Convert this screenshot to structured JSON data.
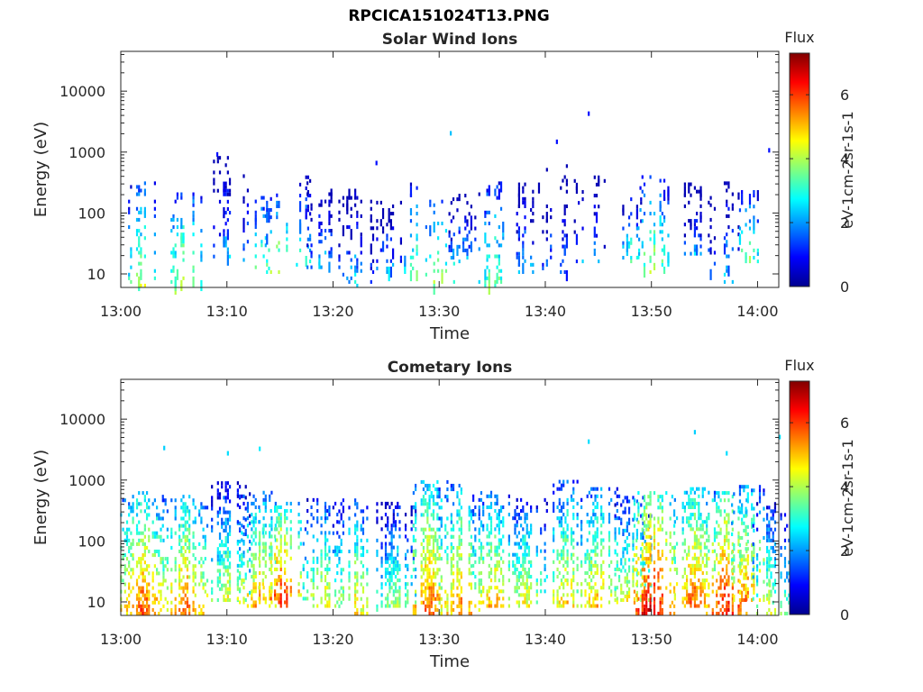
{
  "figure": {
    "title": "RPCICA151024T13.PNG"
  },
  "colormap": "jet",
  "chart_data": [
    {
      "type": "heatmap",
      "title": "Solar Wind Ions",
      "xlabel": "Time",
      "ylabel": "Energy (eV)",
      "xlim": [
        "13:00",
        "14:02"
      ],
      "x_ticks": [
        "13:00",
        "13:10",
        "13:20",
        "13:30",
        "13:40",
        "13:50",
        "14:00"
      ],
      "y_scale": "log",
      "ylim": [
        6,
        45000
      ],
      "y_ticks": [
        "10",
        "100",
        "1000",
        "10000"
      ],
      "colorbar": {
        "title": "Flux",
        "label": "eV-1cm-2sr-1s-1",
        "ticks": [
          "0",
          "2",
          "4",
          "6"
        ],
        "range": [
          0,
          7.3
        ]
      },
      "bursts": [
        {
          "t": "13:02",
          "emin": 6,
          "emax": 300,
          "flux": 4.1
        },
        {
          "t": "13:06",
          "emin": 6,
          "emax": 200,
          "flux": 4.5
        },
        {
          "t": "13:10",
          "emin": 18,
          "emax": 800,
          "flux": 2.4
        },
        {
          "t": "13:13",
          "emin": 12,
          "emax": 250,
          "flux": 3.6
        },
        {
          "t": "13:15",
          "emin": 10,
          "emax": 200,
          "flux": 4.4
        },
        {
          "t": "13:17",
          "emin": 15,
          "emax": 400,
          "flux": 3.2
        },
        {
          "t": "13:19",
          "emin": 12,
          "emax": 300,
          "flux": 2.6
        },
        {
          "t": "13:22",
          "emin": 6,
          "emax": 250,
          "flux": 2.5
        },
        {
          "t": "13:25",
          "emin": 10,
          "emax": 150,
          "flux": 2.4
        },
        {
          "t": "13:28",
          "emin": 10,
          "emax": 400,
          "flux": 3.8
        },
        {
          "t": "13:30",
          "emin": 6,
          "emax": 150,
          "flux": 4.3
        },
        {
          "t": "13:32",
          "emin": 15,
          "emax": 200,
          "flux": 2.6
        },
        {
          "t": "13:35",
          "emin": 6,
          "emax": 400,
          "flux": 3.8
        },
        {
          "t": "13:38",
          "emin": 10,
          "emax": 300,
          "flux": 2.5
        },
        {
          "t": "13:41",
          "emin": 10,
          "emax": 600,
          "flux": 2.3
        },
        {
          "t": "13:44",
          "emin": 15,
          "emax": 400,
          "flux": 2.6
        },
        {
          "t": "13:48",
          "emin": 15,
          "emax": 200,
          "flux": 3.3
        },
        {
          "t": "13:50",
          "emin": 10,
          "emax": 400,
          "flux": 4.2
        },
        {
          "t": "13:54",
          "emin": 20,
          "emax": 300,
          "flux": 2.2
        },
        {
          "t": "13:57",
          "emin": 6,
          "emax": 300,
          "flux": 2.6
        },
        {
          "t": "13:59",
          "emin": 15,
          "emax": 250,
          "flux": 3.8
        }
      ],
      "isolated": [
        {
          "t": "13:44",
          "e": 4200,
          "flux": 1.0
        },
        {
          "t": "13:41",
          "e": 1450,
          "flux": 1.0
        },
        {
          "t": "13:31",
          "e": 2000,
          "flux": 2.3
        },
        {
          "t": "13:09",
          "e": 900,
          "flux": 1.0
        },
        {
          "t": "13:24",
          "e": 650,
          "flux": 1.0
        },
        {
          "t": "14:01",
          "e": 1050,
          "flux": 1.0
        }
      ]
    },
    {
      "type": "heatmap",
      "title": "Cometary Ions",
      "xlabel": "Time",
      "ylabel": "Energy (eV)",
      "xlim": [
        "13:00",
        "14:02"
      ],
      "x_ticks": [
        "13:00",
        "13:10",
        "13:20",
        "13:30",
        "13:40",
        "13:50",
        "14:00"
      ],
      "y_scale": "log",
      "ylim": [
        6,
        45000
      ],
      "y_ticks": [
        "10",
        "100",
        "1000",
        "10000"
      ],
      "colorbar": {
        "title": "Flux",
        "label": "eV-1cm-2sr-1s-1",
        "ticks": [
          "0",
          "2",
          "4",
          "6"
        ],
        "range": [
          0,
          7.3
        ]
      },
      "bursts": [
        {
          "t": "13:02",
          "emin": 6,
          "emax": 600,
          "flux": 6.0
        },
        {
          "t": "13:06",
          "emin": 6,
          "emax": 500,
          "flux": 5.8
        },
        {
          "t": "13:10",
          "emin": 10,
          "emax": 900,
          "flux": 4.4
        },
        {
          "t": "13:13",
          "emin": 8,
          "emax": 600,
          "flux": 5.4
        },
        {
          "t": "13:15",
          "emin": 8,
          "emax": 400,
          "flux": 6.3
        },
        {
          "t": "13:19",
          "emin": 8,
          "emax": 450,
          "flux": 4.8
        },
        {
          "t": "13:22",
          "emin": 6,
          "emax": 450,
          "flux": 4.9
        },
        {
          "t": "13:26",
          "emin": 8,
          "emax": 400,
          "flux": 4.2
        },
        {
          "t": "13:29",
          "emin": 6,
          "emax": 900,
          "flux": 5.9
        },
        {
          "t": "13:32",
          "emin": 6,
          "emax": 800,
          "flux": 5.6
        },
        {
          "t": "13:35",
          "emin": 8,
          "emax": 600,
          "flux": 5.3
        },
        {
          "t": "13:38",
          "emin": 8,
          "emax": 500,
          "flux": 4.7
        },
        {
          "t": "13:42",
          "emin": 8,
          "emax": 900,
          "flux": 5.1
        },
        {
          "t": "13:45",
          "emin": 8,
          "emax": 700,
          "flux": 5.3
        },
        {
          "t": "13:48",
          "emin": 10,
          "emax": 500,
          "flux": 4.7
        },
        {
          "t": "13:50",
          "emin": 6,
          "emax": 600,
          "flux": 6.8
        },
        {
          "t": "13:54",
          "emin": 8,
          "emax": 700,
          "flux": 5.9
        },
        {
          "t": "13:57",
          "emin": 6,
          "emax": 600,
          "flux": 6.5
        },
        {
          "t": "13:59",
          "emin": 10,
          "emax": 800,
          "flux": 5.5
        },
        {
          "t": "14:01",
          "emin": 6,
          "emax": 400,
          "flux": 4.4
        }
      ],
      "isolated": [
        {
          "t": "13:04",
          "e": 3300,
          "flux": 2.4
        },
        {
          "t": "13:10",
          "e": 2700,
          "flux": 2.5
        },
        {
          "t": "13:13",
          "e": 3200,
          "flux": 2.6
        },
        {
          "t": "13:44",
          "e": 4200,
          "flux": 2.5
        },
        {
          "t": "13:54",
          "e": 6000,
          "flux": 2.4
        },
        {
          "t": "13:57",
          "e": 2700,
          "flux": 2.5
        },
        {
          "t": "14:02",
          "e": 5000,
          "flux": 2.5
        }
      ]
    }
  ]
}
